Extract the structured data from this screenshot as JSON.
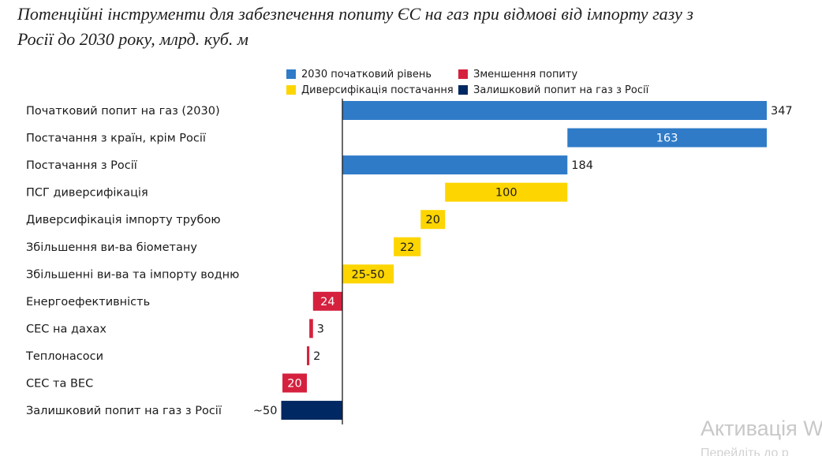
{
  "title": {
    "line1": "Потенційні інструменти для забезпечення попиту ЄС на газ при відмові від імпорту газу з",
    "line2": "Росії до 2030 року, млрд. куб. м"
  },
  "legend": [
    {
      "label": "2030 початковий рівень",
      "color": "#2f7bc8"
    },
    {
      "label": "Зменшення попиту",
      "color": "#d5213e"
    },
    {
      "label": "Диверсифікація постачання",
      "color": "#fdd500"
    },
    {
      "label": "Залишковий попит на газ з Росії",
      "color": "#002862"
    }
  ],
  "watermark": {
    "line1": "Активація W",
    "line2": "Перейдіть до р"
  },
  "chart_data": {
    "type": "bar",
    "orientation": "horizontal",
    "subtype": "waterfall",
    "unit": "млрд. куб. м",
    "categories": [
      "Початковий попит на газ (2030)",
      "Постачання з країн, крім Росії",
      "Постачання з Росії",
      "ПСГ диверсифікація",
      "Диверсифікація імпорту трубою",
      "Збільшення ви-ва біометану",
      "Збільшенні ви-ва та імпорту водню",
      "Енергоефективність",
      "СЕС на дахах",
      "Теплонасоси",
      "СЕС та ВЕС",
      "Залишковий попит на газ з Росії"
    ],
    "bars": [
      {
        "start": 0,
        "end": 347,
        "label": "347",
        "group": "2030 початковий рівень",
        "label_pos": "outside-right",
        "color": "#2f7bc8"
      },
      {
        "start": 184,
        "end": 347,
        "label": "163",
        "group": "2030 початковий рівень",
        "label_pos": "inside",
        "color": "#2f7bc8"
      },
      {
        "start": 0,
        "end": 184,
        "label": "184",
        "group": "2030 початковий рівень",
        "label_pos": "outside-right",
        "color": "#2f7bc8"
      },
      {
        "start": 84,
        "end": 184,
        "label": "100",
        "group": "Диверсифікація постачання",
        "label_pos": "inside",
        "color": "#fdd500"
      },
      {
        "start": 64,
        "end": 84,
        "label": "20",
        "group": "Диверсифікація постачання",
        "label_pos": "inside",
        "color": "#fdd500"
      },
      {
        "start": 42,
        "end": 64,
        "label": "22",
        "group": "Диверсифікація постачання",
        "label_pos": "inside",
        "color": "#fdd500"
      },
      {
        "start": 0,
        "end": 42,
        "label": "25-50",
        "group": "Диверсифікація постачання",
        "label_pos": "inside",
        "color": "#fdd500"
      },
      {
        "start": -24,
        "end": 0,
        "label": "24",
        "group": "Зменшення попиту",
        "label_pos": "inside",
        "color": "#d5213e"
      },
      {
        "start": -27,
        "end": -24,
        "label": "3",
        "group": "Зменшення попиту",
        "label_pos": "outside-right",
        "color": "#d5213e"
      },
      {
        "start": -29,
        "end": -27,
        "label": "2",
        "group": "Зменшення попиту",
        "label_pos": "outside-right",
        "color": "#d5213e"
      },
      {
        "start": -49,
        "end": -29,
        "label": "20",
        "group": "Зменшення попиту",
        "label_pos": "inside",
        "color": "#d5213e"
      },
      {
        "start": -50,
        "end": 0,
        "label": "~50",
        "group": "Залишковий попит на газ з Росії",
        "label_pos": "outside-left",
        "color": "#002862"
      }
    ],
    "grid": false,
    "legend_position": "top"
  }
}
